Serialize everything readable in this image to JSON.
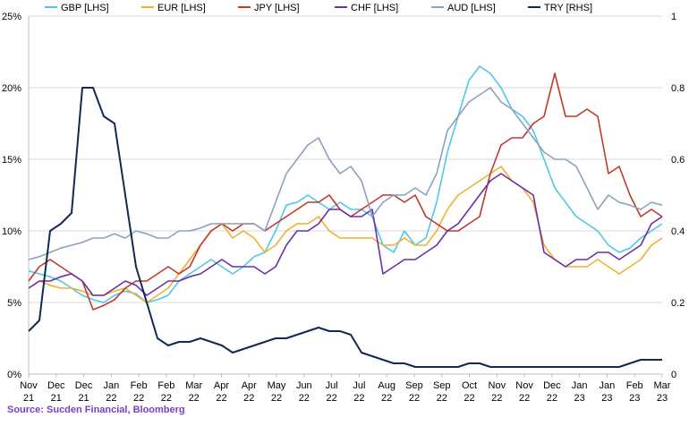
{
  "source": "Source: Sucden Financial, Bloomberg",
  "chart_data": {
    "type": "line",
    "title": "",
    "left_axis": {
      "ticks": [
        "0%",
        "5%",
        "10%",
        "15%",
        "20%",
        "25%"
      ],
      "ylim": [
        0,
        25
      ],
      "unit": "%"
    },
    "right_axis": {
      "ticks": [
        "0",
        "0.2",
        "0.4",
        "0.6",
        "0.8",
        "1"
      ],
      "ylim": [
        0,
        1.0
      ]
    },
    "x_ticks": [
      [
        "Nov",
        "21"
      ],
      [
        "Dec",
        "21"
      ],
      [
        "Dec",
        "21"
      ],
      [
        "Jan",
        "22"
      ],
      [
        "Feb",
        "22"
      ],
      [
        "Feb",
        "22"
      ],
      [
        "Mar",
        "22"
      ],
      [
        "Apr",
        "22"
      ],
      [
        "Apr",
        "22"
      ],
      [
        "May",
        "22"
      ],
      [
        "Jun",
        "22"
      ],
      [
        "Jul",
        "22"
      ],
      [
        "Jul",
        "22"
      ],
      [
        "Aug",
        "22"
      ],
      [
        "Sep",
        "22"
      ],
      [
        "Sep",
        "22"
      ],
      [
        "Oct",
        "22"
      ],
      [
        "Nov",
        "22"
      ],
      [
        "Nov",
        "22"
      ],
      [
        "Dec",
        "22"
      ],
      [
        "Jan",
        "23"
      ],
      [
        "Jan",
        "23"
      ],
      [
        "Feb",
        "23"
      ],
      [
        "Mar",
        "23"
      ]
    ],
    "grid": "horizontal",
    "legend_placement": "top",
    "series": [
      {
        "name": "GBP [LHS]",
        "axis": "left",
        "color": "#4fc8e8",
        "values": [
          7.2,
          7.0,
          6.8,
          6.5,
          6.0,
          5.5,
          5.2,
          5.0,
          5.5,
          5.8,
          5.6,
          5.0,
          5.2,
          5.5,
          6.5,
          7.0,
          7.5,
          8.0,
          7.5,
          7.0,
          7.5,
          8.2,
          8.5,
          10.0,
          11.8,
          12.0,
          12.5,
          12.0,
          11.5,
          12.0,
          11.5,
          11.5,
          11.0,
          9.0,
          8.5,
          10.0,
          9.0,
          9.5,
          12.0,
          15.5,
          18.0,
          20.5,
          21.5,
          21.0,
          20.0,
          18.5,
          18.0,
          17.0,
          15.0,
          13.0,
          12.0,
          11.0,
          10.5,
          10.0,
          9.0,
          8.5,
          8.8,
          9.5,
          10.0,
          10.5
        ]
      },
      {
        "name": "EUR [LHS]",
        "axis": "left",
        "color": "#f0b030",
        "values": [
          6.0,
          6.5,
          6.2,
          6.0,
          6.0,
          5.8,
          5.5,
          5.5,
          5.8,
          6.0,
          5.5,
          5.0,
          5.5,
          6.0,
          7.0,
          8.0,
          9.0,
          10.0,
          10.5,
          9.5,
          10.0,
          9.5,
          8.5,
          9.0,
          10.0,
          10.5,
          10.5,
          11.0,
          10.0,
          9.5,
          9.5,
          9.5,
          9.5,
          9.0,
          9.0,
          9.5,
          9.0,
          9.0,
          10.0,
          11.5,
          12.5,
          13.0,
          13.5,
          14.0,
          14.5,
          13.5,
          13.0,
          12.0,
          9.0,
          8.0,
          7.5,
          7.5,
          7.5,
          8.0,
          7.5,
          7.0,
          7.5,
          8.0,
          9.0,
          9.5
        ]
      },
      {
        "name": "JPY [LHS]",
        "axis": "left",
        "color": "#c0392b",
        "values": [
          6.5,
          7.5,
          8.0,
          7.5,
          7.0,
          6.5,
          4.5,
          4.8,
          5.2,
          6.0,
          6.5,
          6.5,
          7.0,
          7.5,
          7.0,
          7.5,
          9.0,
          10.0,
          10.5,
          10.0,
          10.5,
          10.5,
          10.0,
          10.5,
          11.0,
          11.5,
          12.0,
          12.0,
          12.5,
          11.5,
          11.0,
          11.5,
          12.0,
          12.5,
          12.5,
          12.0,
          12.5,
          11.0,
          10.5,
          10.0,
          10.0,
          10.5,
          11.0,
          14.0,
          16.0,
          16.5,
          16.5,
          17.5,
          18.0,
          21.0,
          18.0,
          18.0,
          18.5,
          18.0,
          14.0,
          14.5,
          12.5,
          11.0,
          11.5,
          11.0
        ]
      },
      {
        "name": "CHF [LHS]",
        "axis": "left",
        "color": "#6a2fa8",
        "values": [
          6.0,
          6.5,
          6.5,
          6.8,
          7.0,
          6.5,
          5.5,
          5.5,
          6.0,
          6.5,
          6.2,
          5.5,
          6.0,
          6.5,
          6.5,
          6.8,
          7.0,
          7.5,
          8.0,
          7.5,
          7.5,
          7.5,
          7.0,
          7.5,
          9.0,
          10.0,
          10.0,
          10.5,
          11.5,
          11.5,
          11.0,
          11.0,
          11.5,
          7.0,
          7.5,
          8.0,
          8.0,
          8.5,
          9.0,
          10.0,
          10.5,
          11.5,
          12.5,
          13.5,
          14.0,
          13.5,
          13.0,
          12.5,
          8.5,
          8.0,
          7.5,
          8.0,
          8.0,
          8.5,
          8.5,
          8.0,
          8.5,
          9.0,
          10.5,
          11.0
        ]
      },
      {
        "name": "AUD [LHS]",
        "axis": "left",
        "color": "#8ea0c0",
        "values": [
          8.0,
          8.2,
          8.5,
          8.8,
          9.0,
          9.2,
          9.5,
          9.5,
          9.8,
          9.5,
          10.0,
          9.8,
          9.5,
          9.5,
          10.0,
          10.0,
          10.2,
          10.5,
          10.5,
          10.5,
          10.5,
          10.5,
          10.0,
          12.0,
          14.0,
          15.0,
          16.0,
          16.5,
          15.0,
          14.0,
          14.5,
          13.5,
          11.0,
          12.0,
          12.5,
          12.5,
          13.0,
          12.5,
          14.0,
          17.0,
          18.0,
          19.0,
          19.5,
          20.0,
          19.0,
          18.5,
          17.5,
          16.5,
          15.5,
          15.0,
          15.0,
          14.5,
          13.0,
          11.5,
          12.5,
          12.0,
          11.8,
          11.5,
          12.0,
          11.8
        ]
      },
      {
        "name": "TRY [RHS]",
        "axis": "right",
        "color": "#102a50",
        "values": [
          0.12,
          0.15,
          0.4,
          0.42,
          0.45,
          0.8,
          0.8,
          0.72,
          0.7,
          0.5,
          0.3,
          0.2,
          0.1,
          0.08,
          0.09,
          0.09,
          0.1,
          0.09,
          0.08,
          0.06,
          0.07,
          0.08,
          0.09,
          0.1,
          0.1,
          0.11,
          0.12,
          0.13,
          0.12,
          0.12,
          0.11,
          0.06,
          0.05,
          0.04,
          0.03,
          0.03,
          0.02,
          0.02,
          0.02,
          0.02,
          0.02,
          0.03,
          0.03,
          0.02,
          0.02,
          0.02,
          0.02,
          0.02,
          0.02,
          0.02,
          0.02,
          0.02,
          0.02,
          0.02,
          0.02,
          0.02,
          0.03,
          0.04,
          0.04,
          0.04
        ]
      }
    ]
  }
}
